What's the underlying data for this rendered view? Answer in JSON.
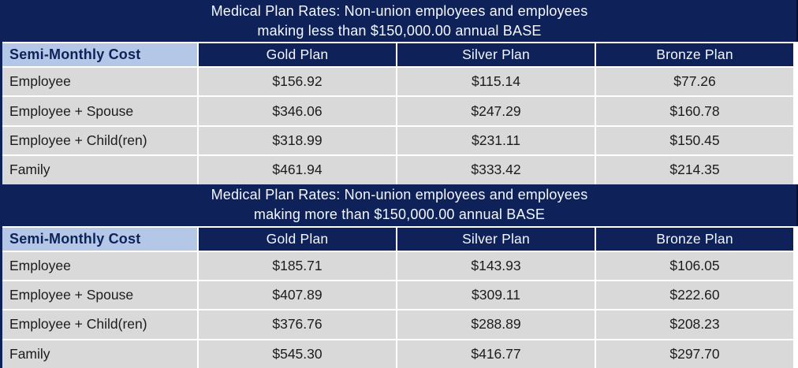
{
  "colors": {
    "navy": "#0e2259",
    "navy_edge": "#05102e",
    "light_blue": "#b4c7e7",
    "row_gray": "#d9d9d9",
    "white": "#ffffff",
    "title_text": "#f4f7ff",
    "text_dark": "#1c1c1c"
  },
  "tables": [
    {
      "title_line1": "Medical Plan Rates: Non-union employees and employees",
      "title_line2": "making less than $150,000.00 annual BASE",
      "header": {
        "label": "Semi-Monthly Cost",
        "plans": [
          "Gold Plan",
          "Silver Plan",
          "Bronze Plan"
        ]
      },
      "rows": [
        {
          "label": "Employee",
          "cells": [
            "$156.92",
            "$115.14",
            "$77.26"
          ]
        },
        {
          "label": "Employee + Spouse",
          "cells": [
            "$346.06",
            "$247.29",
            "$160.78"
          ]
        },
        {
          "label": "Employee + Child(ren)",
          "cells": [
            "$318.99",
            "$231.11",
            "$150.45"
          ]
        },
        {
          "label": "Family",
          "cells": [
            "$461.94",
            "$333.42",
            "$214.35"
          ]
        }
      ]
    },
    {
      "title_line1": "Medical Plan Rates: Non-union employees and employees",
      "title_line2": "making more than $150,000.00 annual BASE",
      "header": {
        "label": "Semi-Monthly Cost",
        "plans": [
          "Gold Plan",
          "Silver Plan",
          "Bronze Plan"
        ]
      },
      "rows": [
        {
          "label": "Employee",
          "cells": [
            "$185.71",
            "$143.93",
            "$106.05"
          ]
        },
        {
          "label": "Employee + Spouse",
          "cells": [
            "$407.89",
            "$309.11",
            "$222.60"
          ]
        },
        {
          "label": "Employee + Child(ren)",
          "cells": [
            "$376.76",
            "$288.89",
            "$208.23"
          ]
        },
        {
          "label": "Family",
          "cells": [
            "$545.30",
            "$416.77",
            "$297.70"
          ]
        }
      ]
    }
  ]
}
